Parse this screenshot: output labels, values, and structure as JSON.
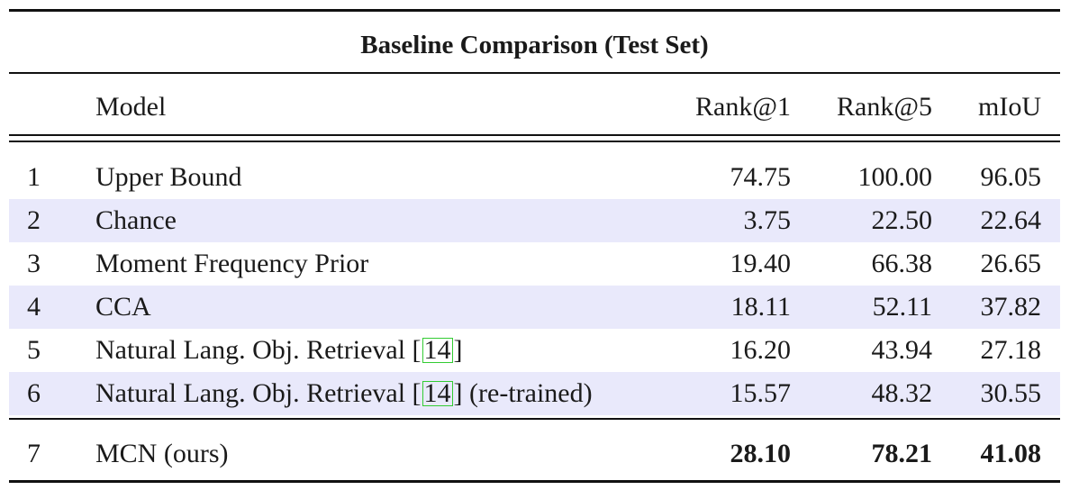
{
  "table": {
    "title": "Baseline Comparison (Test Set)",
    "header": {
      "index": "",
      "model": "Model",
      "rank1": "Rank@1",
      "rank5": "Rank@5",
      "miou": "mIoU"
    },
    "rows": [
      {
        "index": "1",
        "model": "Upper Bound",
        "rank1": "74.75",
        "rank5": "100.00",
        "miou": "96.05"
      },
      {
        "index": "2",
        "model": "Chance",
        "rank1": "3.75",
        "rank5": "22.50",
        "miou": "22.64"
      },
      {
        "index": "3",
        "model": "Moment Frequency Prior",
        "rank1": "19.40",
        "rank5": "66.38",
        "miou": "26.65"
      },
      {
        "index": "4",
        "model": "CCA",
        "rank1": "18.11",
        "rank5": "52.11",
        "miou": "37.82"
      },
      {
        "index": "5",
        "model_prefix": "Natural Lang. Obj. Retrieval [",
        "citation": "14",
        "model_suffix": "]",
        "rank1": "16.20",
        "rank5": "43.94",
        "miou": "27.18"
      },
      {
        "index": "6",
        "model_prefix": "Natural Lang. Obj. Retrieval [",
        "citation": "14",
        "model_suffix": "] (re-trained)",
        "rank1": "15.57",
        "rank5": "48.32",
        "miou": "30.55"
      },
      {
        "index": "7",
        "model": "MCN (ours)",
        "rank1": "28.10",
        "rank5": "78.21",
        "miou": "41.08"
      }
    ],
    "colors": {
      "shaded_row": "#e9e9fb",
      "citation_box": "#33cc33",
      "rules": "#111111"
    }
  }
}
